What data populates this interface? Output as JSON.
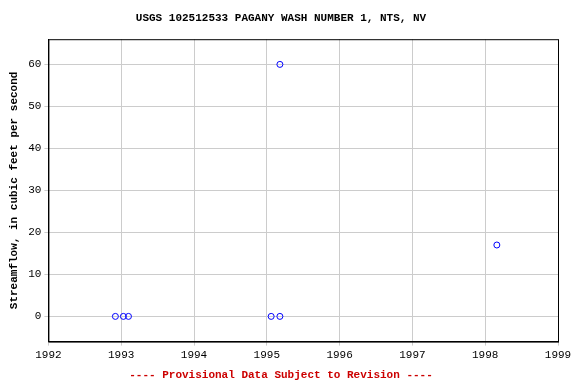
{
  "chart_data": {
    "type": "scatter",
    "title": "USGS 102512533 PAGANY WASH NUMBER 1, NTS, NV",
    "y_label": "Streamflow, in cubic feet per second",
    "annotations": [
      "---- Provisional Data Subject to Revision ----"
    ],
    "x": [
      1992.92,
      1993.03,
      1993.1,
      1995.06,
      1995.18,
      1995.18,
      1998.16
    ],
    "values": [
      0,
      0,
      0,
      0,
      0,
      60,
      17
    ],
    "color": "#0000ff",
    "marker": "circle",
    "xlim": [
      1992,
      1999
    ],
    "xticks": [
      1992,
      1993,
      1994,
      1995,
      1996,
      1997,
      1998,
      1999
    ],
    "ylim": [
      -6,
      66
    ],
    "yticks": [
      0,
      10,
      20,
      30,
      40,
      50,
      60
    ],
    "grid": true
  }
}
